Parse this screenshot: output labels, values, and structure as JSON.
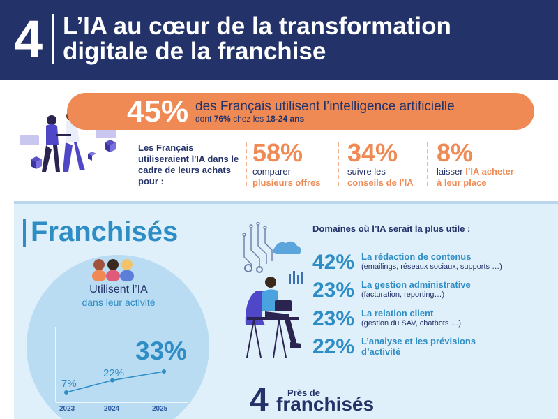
{
  "header": {
    "number": "4",
    "title_line1": "L’IA au cœur de la transformation",
    "title_line2": "digitale de la franchise",
    "bg_color": "#233268"
  },
  "usage": {
    "percent": "45%",
    "line1": "des Français utilisent l’intelligence artificielle",
    "line2_pre": "dont",
    "line2_bold1": "76%",
    "line2_mid": "chez les",
    "line2_bold2": "18-24 ans",
    "pill_color": "#f08a55"
  },
  "purchases": {
    "intro": "Les Français utiliseraient l'IA dans le cadre de leurs achats pour :",
    "stats": [
      {
        "percent": "58%",
        "line_a": "comparer",
        "line_b": "plusieurs offres"
      },
      {
        "percent": "34%",
        "line_a": "suivre les",
        "line_b": "conseils de l’IA"
      },
      {
        "percent": "8%",
        "line_a_pre": "laisser",
        "line_a_accent": "l’IA acheter",
        "line_b": "à leur place"
      }
    ]
  },
  "franchises": {
    "title": "Franchisés",
    "use_label_1": "Utilisent l’IA",
    "use_label_2": "dans leur activité",
    "highlight": "33%",
    "points": [
      {
        "year": "2023",
        "label": "7%",
        "value": 7
      },
      {
        "year": "2024",
        "label": "22%",
        "value": 22
      },
      {
        "year": "2025",
        "label": "33%",
        "value": 33
      }
    ]
  },
  "domains": {
    "title": "Domaines où l’IA serait la plus utile :",
    "items": [
      {
        "percent": "42%",
        "title": "La rédaction de contenus",
        "sub": "(emailings, réseaux sociaux, supports …)"
      },
      {
        "percent": "23%",
        "title": "La gestion administrative",
        "sub": "(facturation, reporting…)"
      },
      {
        "percent": "23%",
        "title": "La relation client",
        "sub": "(gestion du SAV, chatbots …)"
      },
      {
        "percent": "22%",
        "title": "L’analyse et les prévisions d’activité",
        "sub": ""
      }
    ]
  },
  "footer": {
    "number": "4",
    "pres": "Près de",
    "franchises": "franchisés"
  },
  "colors": {
    "navy": "#233268",
    "orange": "#f08a55",
    "blue": "#2d8dc4",
    "panel": "#dff0fb",
    "circle": "#b9dcf3"
  }
}
